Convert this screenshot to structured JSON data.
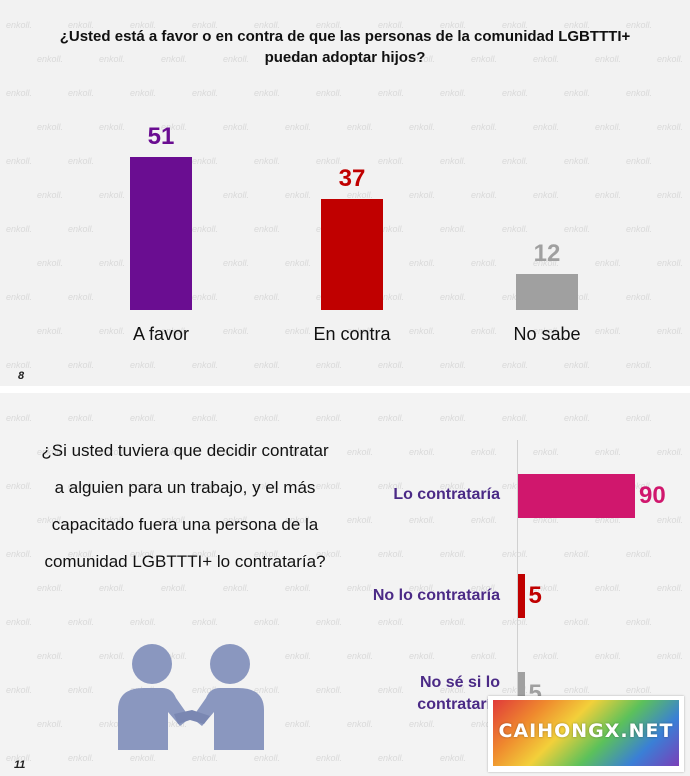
{
  "top_panel": {
    "question": "¿Usted está a favor o en contra de que las personas de la comunidad LGBTTTI+ puedan adoptar hijos?",
    "page_number": "8"
  },
  "bottom_panel": {
    "question": "¿Si usted tuviera que decidir contratar a alguien para un trabajo, y el más capacitado fuera una persona de la comunidad LGBTTTI+ lo contrataría?",
    "page_number": "11"
  },
  "watermark": "enkoll.",
  "logo": {
    "text": "CAIHONGX.NET"
  },
  "icons": {
    "handshake": "handshake-people-icon"
  },
  "chart_data": [
    {
      "type": "bar",
      "categories": [
        "A favor",
        "En contra",
        "No sabe"
      ],
      "values": [
        51,
        37,
        12
      ],
      "colors": [
        "#6a0d91",
        "#c00000",
        "#a0a0a0"
      ],
      "ylim": [
        0,
        100
      ],
      "grid": false
    },
    {
      "type": "bar",
      "orientation": "horizontal",
      "categories": [
        "Lo contrataría",
        "No lo contrataría",
        "No sé si lo contrataría"
      ],
      "values": [
        90,
        5,
        5
      ],
      "colors": [
        "#d0176d",
        "#c00000",
        "#a0a0a0"
      ],
      "xlim": [
        0,
        100
      ],
      "grid": false
    }
  ]
}
